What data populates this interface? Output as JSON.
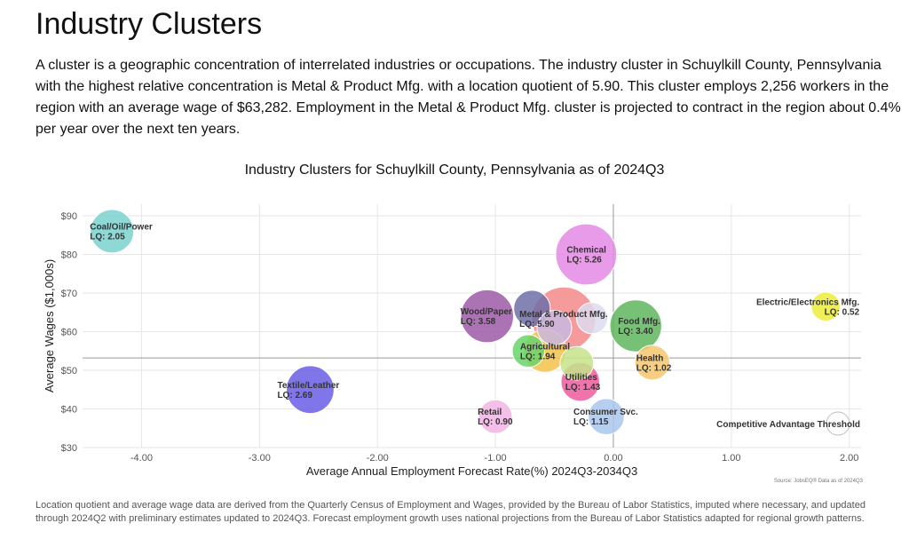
{
  "page": {
    "title": "Industry Clusters",
    "intro": "A cluster is a geographic concentration of interrelated industries or occupations. The industry cluster in Schuylkill County, Pennsylvania with the highest relative concentration is Metal & Product Mfg. with a location quotient of 5.90. This cluster employs 2,256 workers in the region with an average wage of $63,282. Employment in the Metal & Product Mfg. cluster is projected to contract in the region about 0.4% per year over the next ten years.",
    "footer": "Location quotient and average wage data are derived from the Quarterly Census of Employment and Wages, provided by the Bureau of Labor Statistics, imputed where necessary, and updated through 2024Q2 with preliminary estimates updated to 2024Q3. Forecast employment growth uses national projections from the Bureau of Labor Statistics adapted for regional growth patterns."
  },
  "chart_data": {
    "type": "scatter",
    "title": "Industry Clusters for Schuylkill County, Pennsylvania as of 2024Q3",
    "xlabel": "Average Annual Employment Forecast Rate(%) 2024Q3-2034Q3",
    "ylabel": "Average Wages ($1,000s)",
    "source": "Source: JobsEQ® Data as of 2024Q3",
    "xlim": [
      -4.5,
      2.1
    ],
    "ylim": [
      30,
      93
    ],
    "x_ticks": [
      -4,
      -3,
      -2,
      -1,
      0,
      1,
      2
    ],
    "x_tick_labels": [
      "-4.00",
      "-3.00",
      "-2.00",
      "-1.00",
      "0.00",
      "1.00",
      "2.00"
    ],
    "y_ticks": [
      30,
      40,
      50,
      60,
      70,
      80,
      90
    ],
    "y_tick_labels": [
      "$30",
      "$40",
      "$50",
      "$60",
      "$70",
      "$80",
      "$90"
    ],
    "reference_lines": {
      "x": 0.0,
      "y": 53.2
    },
    "grid": true,
    "threshold_label": "Competitive Advantage Threshold",
    "bubbles": [
      {
        "name": "Coal/Oil/Power",
        "lq": "LQ: 2.05",
        "x": -4.25,
        "y": 86.0,
        "size": 2.05,
        "color": "#7ad1cf",
        "labeled": true
      },
      {
        "name": "Chemical",
        "lq": "LQ: 5.26",
        "x": -0.23,
        "y": 80.0,
        "size": 5.26,
        "color": "#e48ae4",
        "labeled": true
      },
      {
        "name": "Wood/Paper",
        "lq": "LQ: 3.58",
        "x": -1.07,
        "y": 64.0,
        "size": 3.58,
        "color": "#9c5aa6",
        "labeled": true
      },
      {
        "name": "",
        "lq": "",
        "x": -0.69,
        "y": 66.0,
        "size": 1.2,
        "color": "#6f6fa8",
        "labeled": false
      },
      {
        "name": "Metal & Product Mfg.",
        "lq": "LQ: 5.90",
        "x": -0.42,
        "y": 63.3,
        "size": 5.9,
        "color": "#f48a8a",
        "labeled": true
      },
      {
        "name": "",
        "lq": "",
        "x": -0.18,
        "y": 63.5,
        "size": 0.7,
        "color": "#dcdcf0",
        "labeled": false
      },
      {
        "name": "",
        "lq": "",
        "x": -0.5,
        "y": 61.0,
        "size": 1.0,
        "color": "#c9b8e0",
        "labeled": false
      },
      {
        "name": "Food Mfg.",
        "lq": "LQ: 3.40",
        "x": 0.19,
        "y": 61.5,
        "size": 3.4,
        "color": "#5fb65f",
        "labeled": true
      },
      {
        "name": "Electric/Electronics Mfg.",
        "lq": "LQ: 0.52",
        "x": 1.8,
        "y": 66.5,
        "size": 0.52,
        "color": "#ecec3a",
        "labeled": true
      },
      {
        "name": "Agricultural",
        "lq": "LQ: 1.94",
        "x": -0.58,
        "y": 55.0,
        "size": 1.94,
        "color": "#f3c24a",
        "labeled": true
      },
      {
        "name": "",
        "lq": "",
        "x": -0.72,
        "y": 55.0,
        "size": 0.8,
        "color": "#6ad36a",
        "labeled": false
      },
      {
        "name": "",
        "lq": "",
        "x": -0.31,
        "y": 51.8,
        "size": 0.9,
        "color": "#c5e38a",
        "labeled": false
      },
      {
        "name": "Health",
        "lq": "LQ: 1.02",
        "x": 0.33,
        "y": 52.0,
        "size": 1.02,
        "color": "#f6c76e",
        "labeled": true
      },
      {
        "name": "Utilities",
        "lq": "LQ: 1.43",
        "x": -0.28,
        "y": 47.0,
        "size": 1.43,
        "color": "#ef5a9e",
        "labeled": true
      },
      {
        "name": "Textile/Leather",
        "lq": "LQ: 2.69",
        "x": -2.57,
        "y": 45.0,
        "size": 2.69,
        "color": "#6a5ee6",
        "labeled": true
      },
      {
        "name": "Consumer Svc.",
        "lq": "LQ: 1.15",
        "x": -0.06,
        "y": 38.0,
        "size": 1.15,
        "color": "#a9c6ec",
        "labeled": true
      },
      {
        "name": "Retail",
        "lq": "LQ: 0.90",
        "x": -1.0,
        "y": 38.0,
        "size": 0.9,
        "color": "#f2b5e6",
        "labeled": true
      }
    ]
  }
}
